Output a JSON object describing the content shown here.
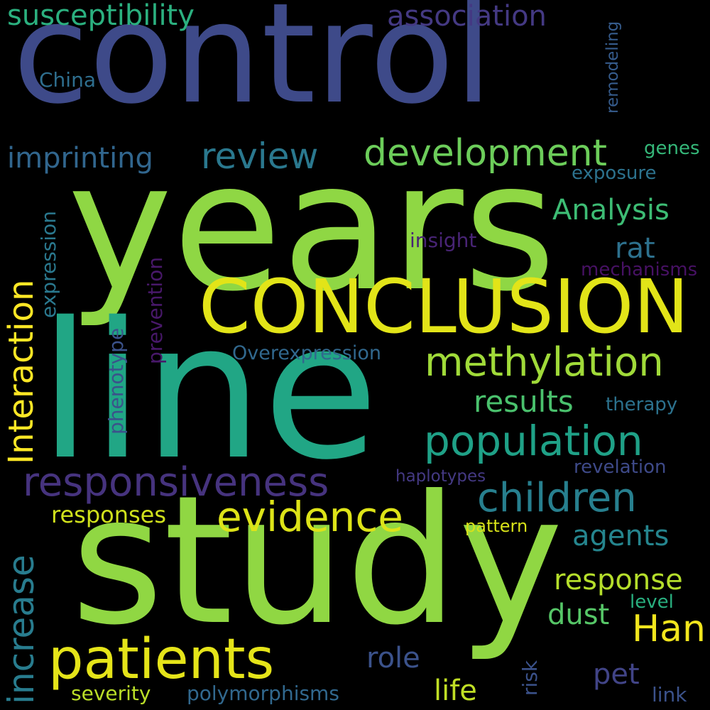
{
  "words": [
    {
      "text": "control",
      "color": "#3e4a89"
    },
    {
      "text": "years",
      "color": "#8fd744"
    },
    {
      "text": "CONCLUSION",
      "color": "#e2e418"
    },
    {
      "text": "line",
      "color": "#21a685"
    },
    {
      "text": "study",
      "color": "#90d743"
    },
    {
      "text": "susceptibility",
      "color": "#2bb07f"
    },
    {
      "text": "association",
      "color": "#443983"
    },
    {
      "text": "China",
      "color": "#2e6e8e"
    },
    {
      "text": "remodeling",
      "color": "#365c8d"
    },
    {
      "text": "imprinting",
      "color": "#31668e"
    },
    {
      "text": "review",
      "color": "#2a788e"
    },
    {
      "text": "development",
      "color": "#6ccd5a"
    },
    {
      "text": "genes",
      "color": "#35b779"
    },
    {
      "text": "exposure",
      "color": "#2c728e"
    },
    {
      "text": "Analysis",
      "color": "#3dbc74"
    },
    {
      "text": "insight",
      "color": "#482475"
    },
    {
      "text": "rat",
      "color": "#2d718e"
    },
    {
      "text": "mechanisms",
      "color": "#471164"
    },
    {
      "text": "Interaction",
      "color": "#fde725"
    },
    {
      "text": "expression",
      "color": "#2a788e"
    },
    {
      "text": "prevention",
      "color": "#48186a"
    },
    {
      "text": "phenotype",
      "color": "#3b528b"
    },
    {
      "text": "Overexpression",
      "color": "#31688e"
    },
    {
      "text": "methylation",
      "color": "#a0da39"
    },
    {
      "text": "results",
      "color": "#4ac16d"
    },
    {
      "text": "therapy",
      "color": "#2c728e"
    },
    {
      "text": "population",
      "color": "#1fa187"
    },
    {
      "text": "responsiveness",
      "color": "#46337e"
    },
    {
      "text": "revelation",
      "color": "#3e4a89"
    },
    {
      "text": "haplotypes",
      "color": "#443983"
    },
    {
      "text": "children",
      "color": "#277f8e"
    },
    {
      "text": "increase",
      "color": "#287c8e"
    },
    {
      "text": "responses",
      "color": "#d0e11c"
    },
    {
      "text": "evidence",
      "color": "#dde318"
    },
    {
      "text": "pattern",
      "color": "#d8e219"
    },
    {
      "text": "agents",
      "color": "#25858e"
    },
    {
      "text": "response",
      "color": "#b5de2b"
    },
    {
      "text": "dust",
      "color": "#56c667"
    },
    {
      "text": "level",
      "color": "#29af7f"
    },
    {
      "text": "Han",
      "color": "#f1e51d"
    },
    {
      "text": "patients",
      "color": "#e5e419"
    },
    {
      "text": "role",
      "color": "#3b528b"
    },
    {
      "text": "risk",
      "color": "#3b528b"
    },
    {
      "text": "pet",
      "color": "#414487"
    },
    {
      "text": "life",
      "color": "#c0df25"
    },
    {
      "text": "severity",
      "color": "#bade28"
    },
    {
      "text": "polymorphisms",
      "color": "#31688e"
    },
    {
      "text": "link",
      "color": "#3b528b"
    }
  ]
}
